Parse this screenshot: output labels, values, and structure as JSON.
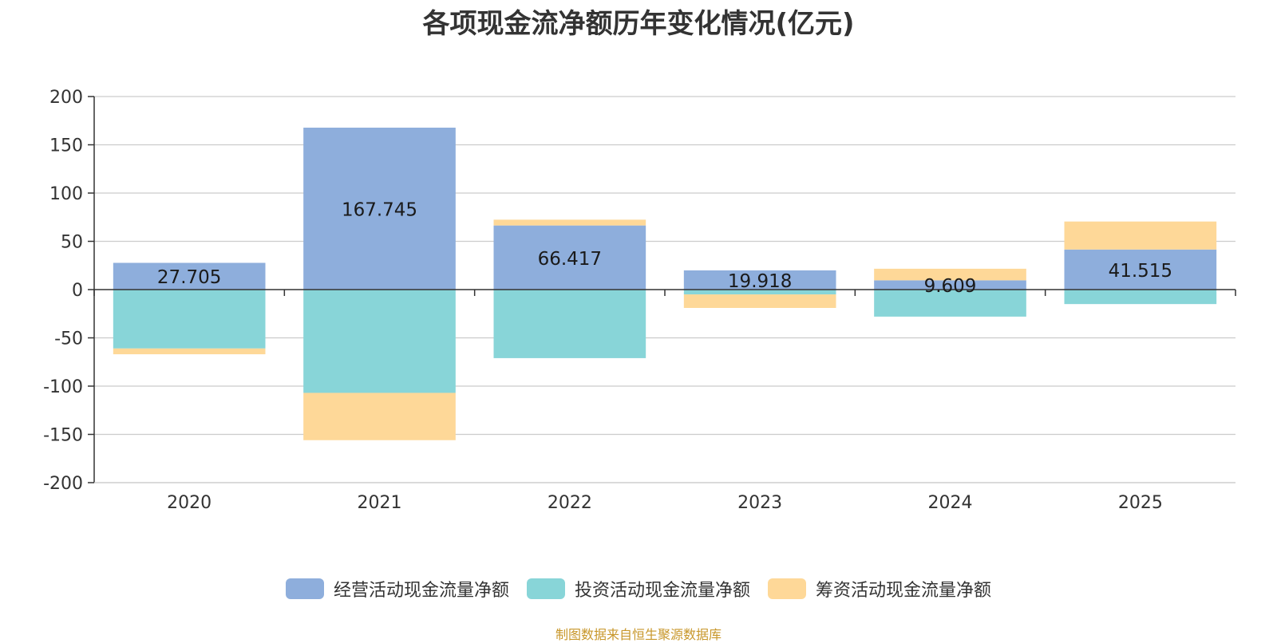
{
  "chart_data": {
    "type": "bar",
    "stacked": true,
    "title": "各项现金流净额历年变化情况(亿元)",
    "categories": [
      "2020",
      "2021",
      "2022",
      "2023",
      "2024",
      "2025"
    ],
    "ylim": [
      -200,
      200
    ],
    "yticks": [
      200,
      150,
      100,
      50,
      0,
      -50,
      -100,
      -150,
      -200
    ],
    "grid": true,
    "legend_position": "bottom",
    "series": [
      {
        "name": "经营活动现金流量净额",
        "color": "#8eaedc",
        "values": [
          27.705,
          167.745,
          66.417,
          19.918,
          9.609,
          41.515
        ],
        "labels": [
          "27.705",
          "167.745",
          "66.417",
          "19.918",
          "9.609",
          "41.515"
        ]
      },
      {
        "name": "投资活动现金流量净额",
        "color": "#88d5d8",
        "values": [
          -61,
          -107,
          -71,
          -5,
          -28,
          -15
        ]
      },
      {
        "name": "筹资活动现金流量净额",
        "color": "#fed898",
        "values": [
          -6,
          -49,
          6,
          -14,
          12,
          29
        ]
      }
    ]
  },
  "source": "制图数据来自恒生聚源数据库"
}
